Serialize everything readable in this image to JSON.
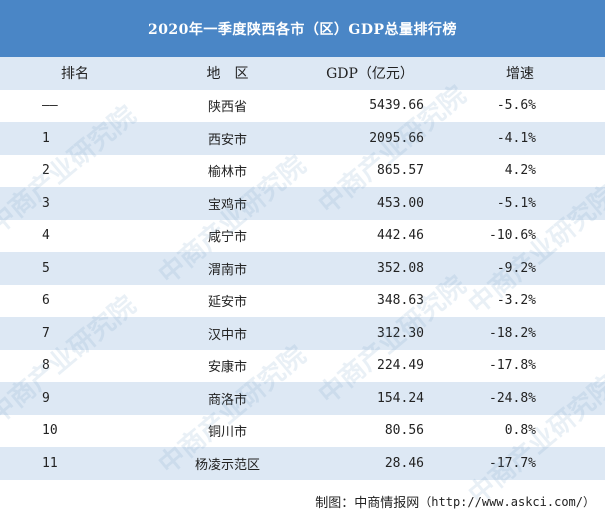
{
  "title": "2020年一季度陕西各市（区）GDP总量排行榜",
  "headers": {
    "rank": "排名",
    "region": "地　区",
    "gdp": "GDP（亿元）",
    "growth": "增速"
  },
  "rows": [
    {
      "rank": "——",
      "region": "陕西省",
      "gdp": "5439.66",
      "growth": "-5.6%"
    },
    {
      "rank": "1",
      "region": "西安市",
      "gdp": "2095.66",
      "growth": "-4.1%"
    },
    {
      "rank": "2",
      "region": "榆林市",
      "gdp": "865.57",
      "growth": "4.2%"
    },
    {
      "rank": "3",
      "region": "宝鸡市",
      "gdp": "453.00",
      "growth": "-5.1%"
    },
    {
      "rank": "4",
      "region": "咸宁市",
      "gdp": "442.46",
      "growth": "-10.6%"
    },
    {
      "rank": "5",
      "region": "渭南市",
      "gdp": "352.08",
      "growth": "-9.2%"
    },
    {
      "rank": "6",
      "region": "延安市",
      "gdp": "348.63",
      "growth": "-3.2%"
    },
    {
      "rank": "7",
      "region": "汉中市",
      "gdp": "312.30",
      "growth": "-18.2%"
    },
    {
      "rank": "8",
      "region": "安康市",
      "gdp": "224.49",
      "growth": "-17.8%"
    },
    {
      "rank": "9",
      "region": "商洛市",
      "gdp": "154.24",
      "growth": "-24.8%"
    },
    {
      "rank": "10",
      "region": "铜川市",
      "gdp": "80.56",
      "growth": "0.8%"
    },
    {
      "rank": "11",
      "region": "杨凌示范区",
      "gdp": "28.46",
      "growth": "-17.7%"
    }
  ],
  "footer": {
    "label": "制图：中商情报网",
    "url": "（http://www.askci.com/）"
  },
  "watermark": "中商产业研究院",
  "colors": {
    "title_bg": "#4a86c6",
    "stripe": "#dde8f4"
  }
}
